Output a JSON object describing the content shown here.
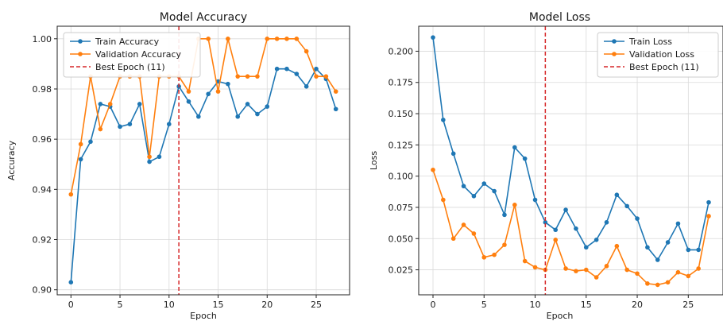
{
  "colors": {
    "train": "#1f77b4",
    "validation": "#ff7f0e",
    "best": "#d62728"
  },
  "chart_data": [
    {
      "type": "line",
      "title": "Model Accuracy",
      "xlabel": "Epoch",
      "ylabel": "Accuracy",
      "xlim": [
        -1.4,
        28.4
      ],
      "ylim": [
        0.898,
        1.005
      ],
      "xticks": [
        0,
        5,
        10,
        15,
        20,
        25
      ],
      "yticks": [
        0.9,
        0.92,
        0.94,
        0.96,
        0.98,
        1.0
      ],
      "ytick_labels": [
        "0.90",
        "0.92",
        "0.94",
        "0.96",
        "0.98",
        "1.00"
      ],
      "grid": true,
      "legend_position": "top-left",
      "x": [
        0,
        1,
        2,
        3,
        4,
        5,
        6,
        7,
        8,
        9,
        10,
        11,
        12,
        13,
        14,
        15,
        16,
        17,
        18,
        19,
        20,
        21,
        22,
        23,
        24,
        25,
        26,
        27
      ],
      "series": [
        {
          "name": "Train Accuracy",
          "values": [
            0.903,
            0.952,
            0.959,
            0.974,
            0.973,
            0.965,
            0.966,
            0.974,
            0.951,
            0.953,
            0.966,
            0.981,
            0.975,
            0.969,
            0.978,
            0.983,
            0.982,
            0.969,
            0.974,
            0.97,
            0.973,
            0.988,
            0.988,
            0.986,
            0.981,
            0.988,
            0.984,
            0.972
          ]
        },
        {
          "name": "Validation Accuracy",
          "values": [
            0.938,
            0.958,
            0.985,
            0.964,
            0.974,
            0.985,
            0.985,
            0.985,
            0.953,
            0.985,
            0.985,
            0.985,
            0.979,
            1.0,
            1.0,
            0.979,
            1.0,
            0.985,
            0.985,
            0.985,
            1.0,
            1.0,
            1.0,
            1.0,
            0.995,
            0.985,
            0.985,
            0.979
          ]
        }
      ],
      "best_epoch": {
        "label": "Best Epoch (11)",
        "x": 11
      }
    },
    {
      "type": "line",
      "title": "Model Loss",
      "xlabel": "Epoch",
      "ylabel": "Loss",
      "xlim": [
        -1.4,
        28.4
      ],
      "ylim": [
        0.005,
        0.22
      ],
      "xticks": [
        0,
        5,
        10,
        15,
        20,
        25
      ],
      "yticks": [
        0.025,
        0.05,
        0.075,
        0.1,
        0.125,
        0.15,
        0.175,
        0.2
      ],
      "ytick_labels": [
        "0.025",
        "0.050",
        "0.075",
        "0.100",
        "0.125",
        "0.150",
        "0.175",
        "0.200"
      ],
      "grid": true,
      "legend_position": "top-right",
      "x": [
        0,
        1,
        2,
        3,
        4,
        5,
        6,
        7,
        8,
        9,
        10,
        11,
        12,
        13,
        14,
        15,
        16,
        17,
        18,
        19,
        20,
        21,
        22,
        23,
        24,
        25,
        26,
        27
      ],
      "series": [
        {
          "name": "Train Loss",
          "values": [
            0.211,
            0.145,
            0.118,
            0.092,
            0.084,
            0.094,
            0.088,
            0.069,
            0.123,
            0.114,
            0.081,
            0.063,
            0.057,
            0.073,
            0.058,
            0.043,
            0.049,
            0.063,
            0.085,
            0.076,
            0.066,
            0.043,
            0.033,
            0.047,
            0.062,
            0.041,
            0.041,
            0.079
          ]
        },
        {
          "name": "Validation Loss",
          "values": [
            0.105,
            0.081,
            0.05,
            0.061,
            0.054,
            0.035,
            0.037,
            0.045,
            0.077,
            0.032,
            0.027,
            0.025,
            0.049,
            0.026,
            0.024,
            0.025,
            0.019,
            0.028,
            0.044,
            0.025,
            0.022,
            0.014,
            0.013,
            0.015,
            0.023,
            0.02,
            0.026,
            0.068
          ]
        }
      ],
      "best_epoch": {
        "label": "Best Epoch (11)",
        "x": 11
      }
    }
  ]
}
